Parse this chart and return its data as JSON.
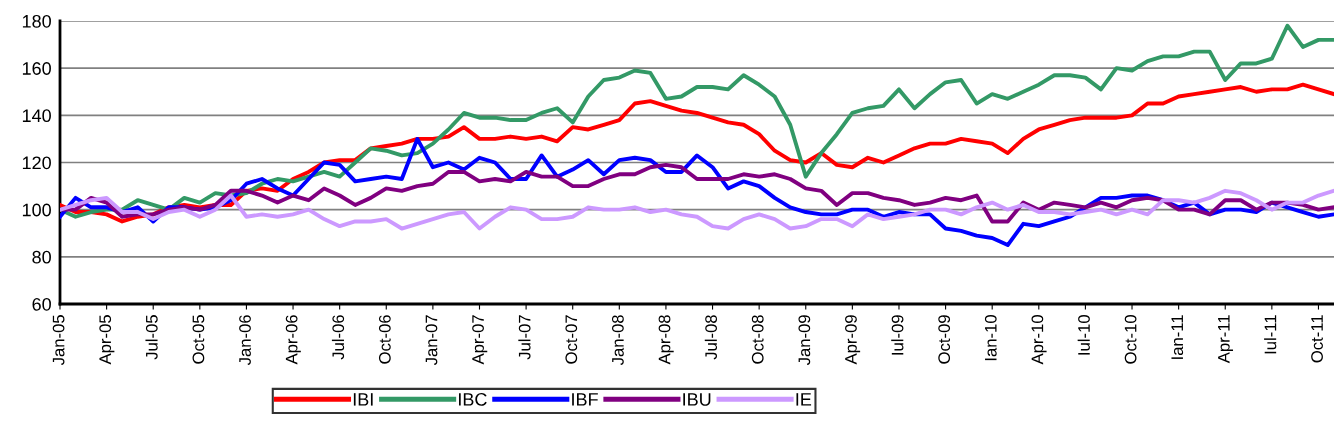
{
  "chart_data": {
    "type": "line",
    "categories": [
      "Jan-05",
      null,
      null,
      "Apr-05",
      null,
      null,
      "Jul-05",
      null,
      null,
      "Oct-05",
      null,
      null,
      "Jan-06",
      null,
      null,
      "Apr-06",
      null,
      null,
      "Jul-06",
      null,
      null,
      "Oct-06",
      null,
      null,
      "Jan-07",
      null,
      null,
      "Apr-07",
      null,
      null,
      "Jul-07",
      null,
      null,
      "Oct-07",
      null,
      null,
      "Jan-08",
      null,
      null,
      "Apr-08",
      null,
      null,
      "Jul-08",
      null,
      null,
      "Oct-08",
      null,
      null,
      "Jan-09",
      null,
      null,
      "Apr-09",
      null,
      null,
      "Iul-09",
      null,
      null,
      "Oct-09",
      null,
      null,
      "Ian-10",
      null,
      null,
      "Apr-10",
      null,
      null,
      "Iul-10",
      null,
      null,
      "Oct-10",
      null,
      null,
      "Ian-11",
      null,
      null,
      "Apr-11",
      null,
      null,
      "Iul-11",
      null,
      null,
      "Oct-11",
      null
    ],
    "series": [
      {
        "name": "IBI",
        "color": "#ff0000",
        "values": [
          102,
          99,
          99,
          98,
          95,
          97,
          98,
          101,
          102,
          101,
          102,
          102,
          108,
          109,
          108,
          113,
          116,
          120,
          121,
          121,
          126,
          127,
          128,
          130,
          130,
          131,
          135,
          130,
          130,
          131,
          130,
          131,
          129,
          135,
          134,
          136,
          138,
          145,
          146,
          144,
          142,
          141,
          139,
          137,
          136,
          132,
          125,
          121,
          120,
          124,
          119,
          118,
          122,
          120,
          123,
          126,
          128,
          128,
          130,
          129,
          128,
          124,
          130,
          134,
          136,
          138,
          139,
          139,
          139,
          140,
          145,
          145,
          148,
          149,
          150,
          151,
          152,
          150,
          151,
          151,
          153,
          151,
          149
        ]
      },
      {
        "name": "IBC",
        "color": "#339966",
        "values": [
          100,
          97,
          99,
          100,
          100,
          104,
          102,
          100,
          105,
          103,
          107,
          106,
          107,
          111,
          113,
          112,
          114,
          116,
          114,
          120,
          126,
          125,
          123,
          124,
          128,
          134,
          141,
          139,
          139,
          138,
          138,
          141,
          143,
          137,
          148,
          155,
          156,
          159,
          158,
          147,
          148,
          152,
          152,
          151,
          157,
          153,
          148,
          136,
          114,
          124,
          132,
          141,
          143,
          144,
          151,
          143,
          149,
          154,
          155,
          145,
          149,
          147,
          150,
          153,
          157,
          157,
          156,
          151,
          160,
          159,
          163,
          165,
          165,
          167,
          167,
          155,
          162,
          162,
          164,
          178,
          169,
          172,
          172
        ]
      },
      {
        "name": "IBF",
        "color": "#0000ff",
        "values": [
          97,
          105,
          101,
          101,
          99,
          101,
          95,
          101,
          101,
          100,
          101,
          104,
          111,
          113,
          109,
          106,
          113,
          120,
          119,
          112,
          113,
          114,
          113,
          130,
          118,
          120,
          117,
          122,
          120,
          113,
          113,
          123,
          114,
          117,
          121,
          115,
          121,
          122,
          121,
          116,
          116,
          123,
          118,
          109,
          112,
          110,
          105,
          101,
          99,
          98,
          98,
          100,
          100,
          97,
          99,
          98,
          98,
          92,
          91,
          89,
          88,
          85,
          94,
          93,
          95,
          97,
          101,
          105,
          105,
          106,
          106,
          104,
          101,
          103,
          98,
          100,
          100,
          99,
          103,
          101,
          99,
          97,
          98
        ]
      },
      {
        "name": "IBU",
        "color": "#800080",
        "values": [
          100,
          100,
          105,
          103,
          97,
          98,
          98,
          100,
          101,
          100,
          102,
          108,
          108,
          106,
          103,
          106,
          104,
          109,
          106,
          102,
          105,
          109,
          108,
          110,
          111,
          116,
          116,
          112,
          113,
          112,
          116,
          114,
          114,
          110,
          110,
          113,
          115,
          115,
          118,
          119,
          118,
          113,
          113,
          113,
          115,
          114,
          115,
          113,
          109,
          108,
          102,
          107,
          107,
          105,
          104,
          102,
          103,
          105,
          104,
          106,
          95,
          95,
          103,
          100,
          103,
          102,
          101,
          103,
          101,
          104,
          105,
          104,
          100,
          100,
          98,
          104,
          104,
          100,
          103,
          103,
          102,
          100,
          101
        ]
      },
      {
        "name": "IE",
        "color": "#cc99ff",
        "values": [
          100,
          102,
          104,
          105,
          99,
          99,
          96,
          99,
          100,
          97,
          100,
          106,
          97,
          98,
          97,
          98,
          100,
          96,
          93,
          95,
          95,
          96,
          92,
          94,
          96,
          98,
          99,
          92,
          97,
          101,
          100,
          96,
          96,
          97,
          101,
          100,
          100,
          101,
          99,
          100,
          98,
          97,
          93,
          92,
          96,
          98,
          96,
          92,
          93,
          96,
          96,
          93,
          98,
          96,
          97,
          98,
          100,
          100,
          98,
          101,
          103,
          100,
          102,
          99,
          99,
          98,
          99,
          100,
          98,
          100,
          98,
          104,
          104,
          103,
          105,
          108,
          107,
          104,
          100,
          103,
          103,
          106,
          108
        ]
      }
    ],
    "ylim": [
      60,
      180
    ],
    "yticks": [
      60,
      80,
      100,
      120,
      140,
      160,
      180
    ],
    "grid": "y",
    "legend": "bottom",
    "marker": "none",
    "line_style": "solid"
  }
}
